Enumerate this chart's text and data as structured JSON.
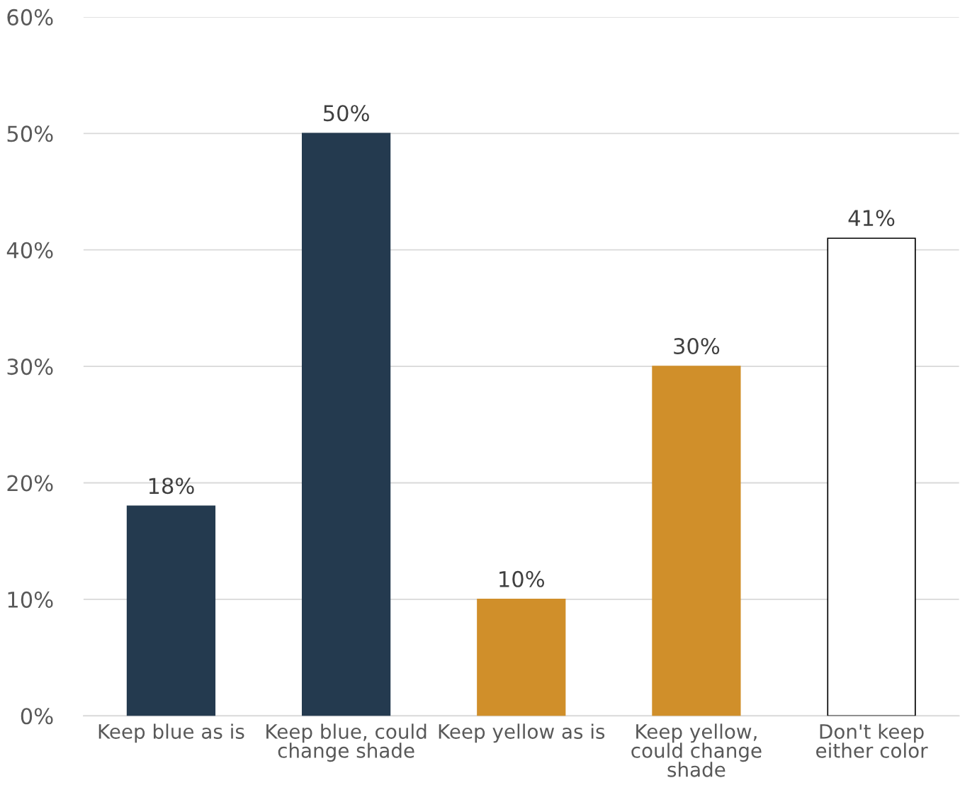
{
  "chart_data": {
    "type": "bar",
    "categories": [
      "Keep blue as is",
      "Keep blue, could change shade",
      "Keep yellow as is",
      "Keep yellow, could change shade",
      "Don't keep either color"
    ],
    "values": [
      18,
      50,
      10,
      30,
      41
    ],
    "colors": [
      "#243a4f",
      "#243a4f",
      "#d08f2a",
      "#d08f2a",
      "#ffffff"
    ],
    "value_labels": [
      "18%",
      "50%",
      "10%",
      "30%",
      "41%"
    ],
    "ylim": [
      0,
      60
    ],
    "yticks": [
      {
        "value": 0,
        "label": "0%"
      },
      {
        "value": 10,
        "label": "10%"
      },
      {
        "value": 20,
        "label": "20%"
      },
      {
        "value": 30,
        "label": "30%"
      },
      {
        "value": 40,
        "label": "40%"
      },
      {
        "value": 50,
        "label": "50%"
      },
      {
        "value": 60,
        "label": "60%"
      }
    ],
    "grid": "y",
    "legend": false
  }
}
